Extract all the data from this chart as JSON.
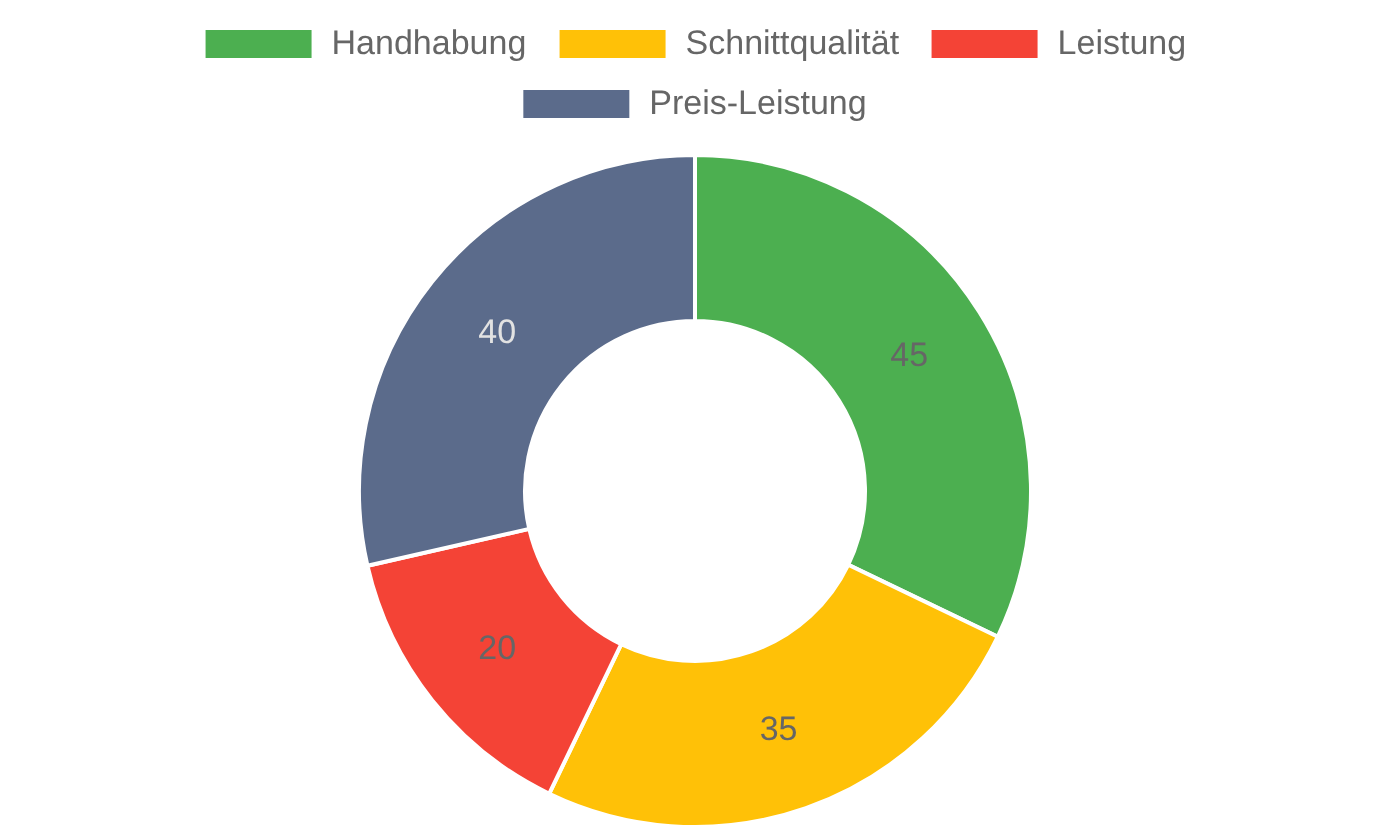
{
  "chart_data": {
    "type": "donut",
    "categories": [
      "Handhabung",
      "Schnittqualität",
      "Leistung",
      "Preis-Leistung"
    ],
    "values": [
      45,
      35,
      20,
      40
    ],
    "colors": [
      "#4caf50",
      "#ffc107",
      "#f44336",
      "#5b6b8b"
    ],
    "data_labels": true,
    "legend": "top"
  }
}
